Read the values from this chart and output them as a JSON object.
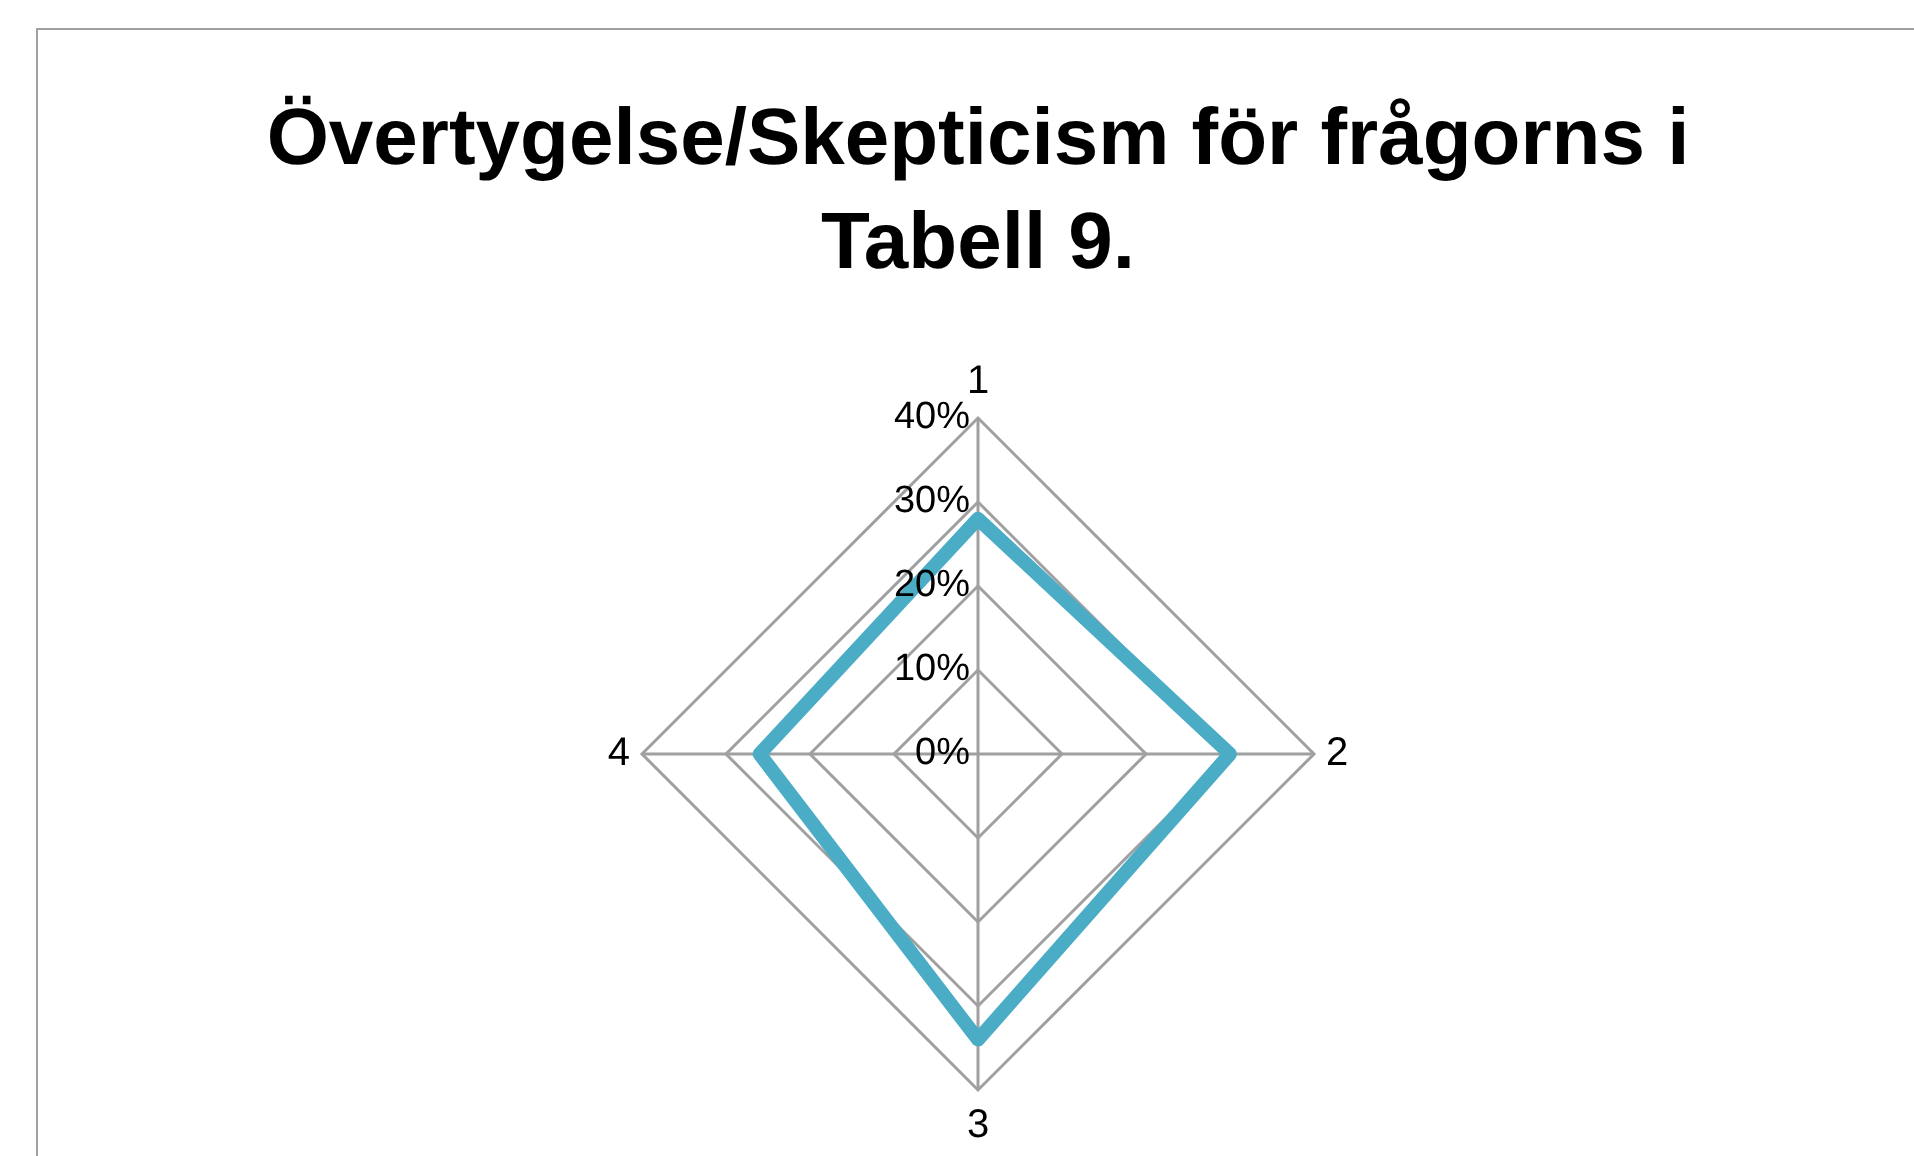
{
  "chart_data": {
    "type": "radar",
    "title": "Övertygelse/Skepticism för frågorns i Tabell 9.",
    "categories": [
      "1",
      "2",
      "3",
      "4"
    ],
    "series": [
      {
        "color": "#4bacc6",
        "values": [
          28,
          30,
          34,
          26
        ]
      }
    ],
    "ylim": [
      0,
      40
    ],
    "yticks": [
      {
        "value": 0,
        "label": "0%"
      },
      {
        "value": 10,
        "label": "10%"
      },
      {
        "value": 20,
        "label": "20%"
      },
      {
        "value": 30,
        "label": "30%"
      },
      {
        "value": 40,
        "label": "40%"
      }
    ],
    "grid": true,
    "legend": false,
    "marker": "none"
  }
}
